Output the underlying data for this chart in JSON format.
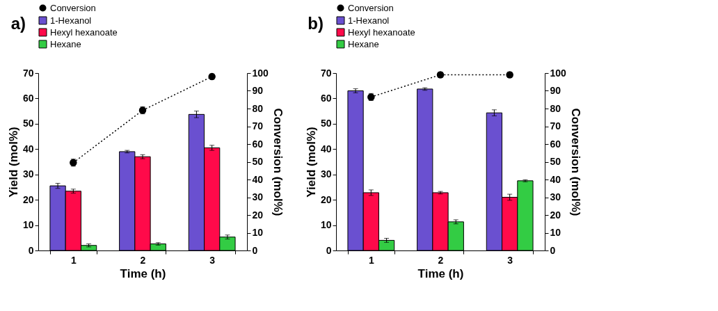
{
  "chart_data": [
    {
      "type": "bar",
      "title": "a)",
      "categories": [
        "1",
        "2",
        "3"
      ],
      "xlabel": "Time (h)",
      "ylabel": "Yield (mol%)",
      "y2label": "Conversion (mol%)",
      "ylim": [
        0,
        70
      ],
      "yticks": [
        0,
        10,
        20,
        30,
        40,
        50,
        60,
        70
      ],
      "y2lim": [
        0,
        100
      ],
      "y2ticks": [
        0,
        10,
        20,
        30,
        40,
        50,
        60,
        70,
        80,
        90,
        100
      ],
      "legend": "top left",
      "series": [
        {
          "name": "Conversion",
          "type": "line",
          "axis": "y2",
          "color": "#000000",
          "marker": "circle",
          "line_style": "dotted",
          "values": [
            49.5,
            79,
            98
          ],
          "errors": [
            2,
            2,
            1.5
          ]
        },
        {
          "name": "1-Hexanol",
          "color": "#6a50d0",
          "values": [
            25.5,
            39,
            53.7
          ],
          "errors": [
            1,
            0.5,
            1.3
          ]
        },
        {
          "name": "Hexyl hexanoate",
          "color": "#ff0a4a",
          "values": [
            23.4,
            37,
            40.5
          ],
          "errors": [
            0.8,
            0.8,
            1
          ]
        },
        {
          "name": "Hexane",
          "color": "#33cc44",
          "values": [
            2,
            2.6,
            5.3
          ],
          "errors": [
            0.6,
            0.5,
            0.8
          ]
        }
      ]
    },
    {
      "type": "bar",
      "title": "b)",
      "categories": [
        "1",
        "2",
        "3"
      ],
      "xlabel": "Time (h)",
      "ylabel": "Yield (mol%)",
      "y2label": "Conversion (mol%)",
      "ylim": [
        0,
        70
      ],
      "yticks": [
        0,
        10,
        20,
        30,
        40,
        50,
        60,
        70
      ],
      "y2lim": [
        0,
        100
      ],
      "y2ticks": [
        0,
        10,
        20,
        30,
        40,
        50,
        60,
        70,
        80,
        90,
        100
      ],
      "legend": "top left",
      "series": [
        {
          "name": "Conversion",
          "type": "line",
          "axis": "y2",
          "color": "#000000",
          "marker": "circle",
          "line_style": "dotted",
          "values": [
            86.5,
            99,
            99
          ],
          "errors": [
            2,
            1.5,
            1.5
          ]
        },
        {
          "name": "1-Hexanol",
          "color": "#6a50d0",
          "values": [
            63,
            63.7,
            54.3
          ],
          "errors": [
            0.8,
            0.5,
            1.2
          ]
        },
        {
          "name": "Hexyl hexanoate",
          "color": "#ff0a4a",
          "values": [
            22.8,
            22.8,
            21
          ],
          "errors": [
            1.1,
            0.5,
            1.2
          ]
        },
        {
          "name": "Hexane",
          "color": "#33cc44",
          "values": [
            4,
            11.3,
            27.5
          ],
          "errors": [
            0.8,
            0.8,
            0.4
          ]
        }
      ]
    }
  ]
}
